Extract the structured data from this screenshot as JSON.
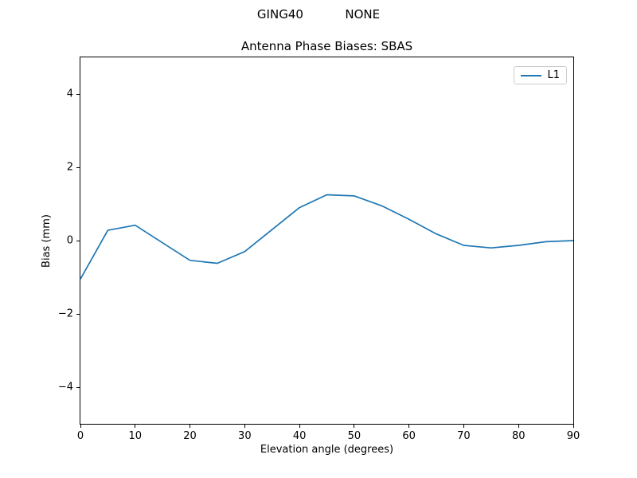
{
  "figure": {
    "suptitle": "GING40           NONE"
  },
  "chart_data": {
    "type": "line",
    "title": "Antenna Phase Biases: SBAS",
    "xlabel": "Elevation angle (degrees)",
    "ylabel": "Bias (mm)",
    "xlim": [
      0,
      90
    ],
    "ylim": [
      -5,
      5
    ],
    "x_ticks": [
      0,
      10,
      20,
      30,
      40,
      50,
      60,
      70,
      80,
      90
    ],
    "y_ticks": [
      -4,
      -2,
      0,
      2,
      4
    ],
    "grid": false,
    "legend_position": "upper right",
    "x": [
      0,
      5,
      10,
      15,
      20,
      25,
      30,
      35,
      40,
      45,
      50,
      55,
      60,
      65,
      70,
      75,
      80,
      85,
      90
    ],
    "series": [
      {
        "name": "L1",
        "color": "#1f77b4",
        "values": [
          -1.05,
          0.28,
          0.42,
          -0.06,
          -0.54,
          -0.62,
          -0.3,
          0.3,
          0.9,
          1.25,
          1.22,
          0.95,
          0.58,
          0.18,
          -0.13,
          -0.2,
          -0.13,
          -0.03,
          0.0
        ]
      }
    ]
  }
}
